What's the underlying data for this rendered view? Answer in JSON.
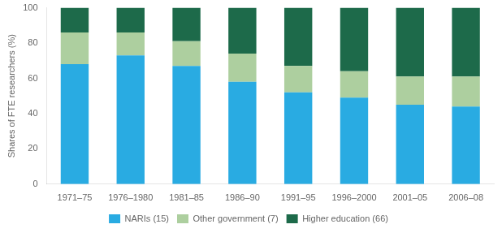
{
  "chart_data": {
    "type": "bar",
    "categories": [
      "1971–75",
      "1976–1980",
      "1981–85",
      "1986–90",
      "1991–95",
      "1996–2000",
      "2001–05",
      "2006–08"
    ],
    "series": [
      {
        "name": "NARIs (15)",
        "color": "#29ABE2",
        "values": [
          68,
          73,
          67,
          58,
          52,
          49,
          45,
          44
        ]
      },
      {
        "name": "Other government (7)",
        "color": "#ADCF9F",
        "values": [
          18,
          13,
          14,
          16,
          15,
          15,
          16,
          17
        ]
      },
      {
        "name": "Higher education (66)",
        "color": "#1D6A4A",
        "values": [
          14,
          14,
          19,
          26,
          33,
          36,
          39,
          39
        ]
      }
    ],
    "ylabel": "Shares of FTE researchers (%)",
    "ylim": [
      0,
      100
    ],
    "yticks": [
      0,
      20,
      40,
      60,
      80,
      100
    ],
    "stacked": true,
    "grid": false,
    "legend": "bottom"
  }
}
